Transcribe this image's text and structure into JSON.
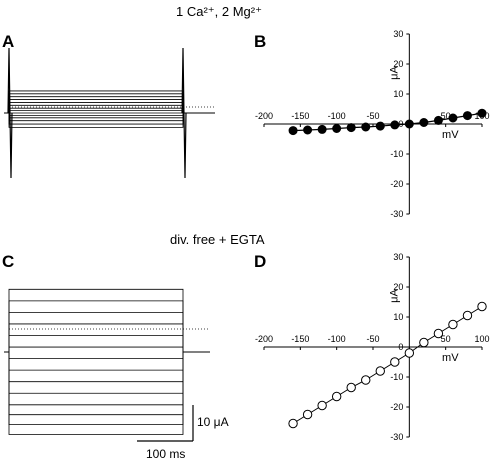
{
  "figure": {
    "condition_top": "1 Ca²⁺, 2 Mg²⁺",
    "condition_bottom": "div. free + EGTA",
    "panel_labels": [
      "A",
      "B",
      "C",
      "D"
    ],
    "scale_bar_current": "10 μA",
    "scale_bar_time": "100 ms"
  },
  "chart_data": [
    {
      "panel": "A",
      "type": "line",
      "title": "",
      "description_kind": "current traces",
      "n_sweeps": 14,
      "step_currents_uA": [
        -3,
        -2.3,
        -1.6,
        -1,
        -0.5,
        0,
        0.5,
        1,
        1.6,
        2.2,
        2.8,
        3.4,
        4,
        4.6
      ],
      "xlabel": "",
      "ylabel": ""
    },
    {
      "panel": "B",
      "type": "scatter",
      "xlabel": "mV",
      "ylabel": "μA",
      "xlim": [
        -200,
        100
      ],
      "ylim": [
        -30,
        30
      ],
      "xticks": [
        -200,
        -150,
        -100,
        -50,
        0,
        50,
        100
      ],
      "yticks": [
        -30,
        -20,
        -10,
        0,
        10,
        20,
        30
      ],
      "marker": "filled-circle",
      "x": [
        -160,
        -140,
        -120,
        -100,
        -80,
        -60,
        -40,
        -20,
        0,
        20,
        40,
        60,
        80,
        100
      ],
      "y": [
        -2.2,
        -2.0,
        -1.8,
        -1.5,
        -1.2,
        -1.0,
        -0.7,
        -0.3,
        0,
        0.5,
        1.2,
        2.0,
        2.8,
        3.6
      ]
    },
    {
      "panel": "C",
      "type": "line",
      "title": "",
      "description_kind": "current traces",
      "n_sweeps": 14,
      "step_currents_uA": [
        -25,
        -22,
        -19,
        -16,
        -12.5,
        -9,
        -5.5,
        -2,
        1.5,
        5,
        8.5,
        12,
        15.5,
        19
      ],
      "xlabel": "",
      "ylabel": ""
    },
    {
      "panel": "D",
      "type": "line",
      "xlabel": "mV",
      "ylabel": "μA",
      "xlim": [
        -200,
        100
      ],
      "ylim": [
        -30,
        30
      ],
      "xticks": [
        -200,
        -150,
        -100,
        -50,
        0,
        50,
        100
      ],
      "yticks": [
        -30,
        -20,
        -10,
        0,
        10,
        20,
        30
      ],
      "marker": "open-circle",
      "x": [
        -160,
        -140,
        -120,
        -100,
        -80,
        -60,
        -40,
        -20,
        0,
        20,
        40,
        60,
        80,
        100
      ],
      "y": [
        -25.5,
        -22.5,
        -19.5,
        -16.5,
        -13.5,
        -11,
        -8,
        -5,
        -2,
        1.5,
        4.5,
        7.5,
        10.5,
        13.5
      ]
    }
  ]
}
